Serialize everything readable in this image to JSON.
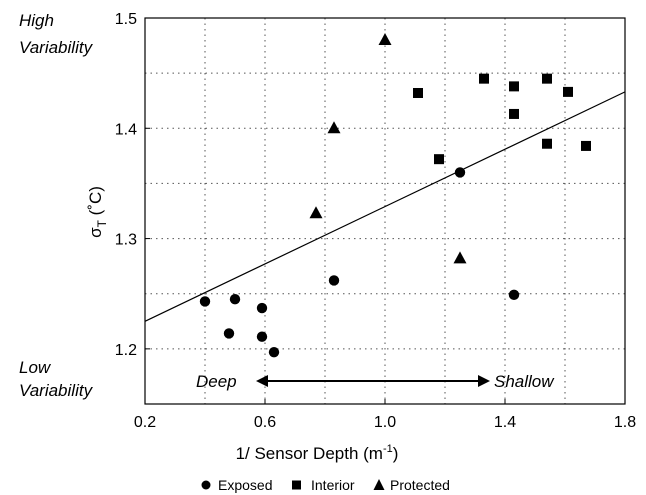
{
  "chart_data": {
    "type": "scatter",
    "xlabel_main": "1/ Sensor Depth (m",
    "xlabel_sup": "-1",
    "xlabel_end": ")",
    "ylabel_main": "σ",
    "ylabel_sub": "T",
    "ylabel_unit": " (˚C)",
    "xlim": [
      0.2,
      1.8
    ],
    "ylim": [
      1.15,
      1.5
    ],
    "x_ticks": [
      "0.2",
      "0.6",
      "1.0",
      "1.4",
      "1.8"
    ],
    "y_ticks": [
      "1.2",
      "1.3",
      "1.4",
      "1.5"
    ],
    "grid": true,
    "annotations": {
      "high_line1": "High",
      "high_line2": "Variability",
      "low_line1": "Low",
      "low_line2": "Variability",
      "deep": "Deep",
      "shallow": "Shallow"
    },
    "trendline": {
      "x": [
        0.2,
        1.8
      ],
      "y": [
        1.225,
        1.433
      ]
    },
    "legend_position": "bottom",
    "series": [
      {
        "name": "Exposed",
        "marker": "circle",
        "points": [
          [
            0.4,
            1.243
          ],
          [
            0.5,
            1.245
          ],
          [
            0.59,
            1.237
          ],
          [
            0.48,
            1.214
          ],
          [
            0.59,
            1.211
          ],
          [
            0.63,
            1.197
          ],
          [
            0.83,
            1.262
          ],
          [
            1.25,
            1.36
          ],
          [
            1.43,
            1.249
          ]
        ]
      },
      {
        "name": "Interior",
        "marker": "square",
        "points": [
          [
            1.11,
            1.432
          ],
          [
            1.18,
            1.372
          ],
          [
            1.33,
            1.445
          ],
          [
            1.43,
            1.438
          ],
          [
            1.43,
            1.413
          ],
          [
            1.54,
            1.445
          ],
          [
            1.54,
            1.386
          ],
          [
            1.61,
            1.433
          ],
          [
            1.67,
            1.384
          ]
        ]
      },
      {
        "name": "Protected",
        "marker": "triangle",
        "points": [
          [
            1.0,
            1.48
          ],
          [
            0.83,
            1.4
          ],
          [
            0.77,
            1.323
          ],
          [
            1.25,
            1.282
          ]
        ]
      }
    ]
  }
}
